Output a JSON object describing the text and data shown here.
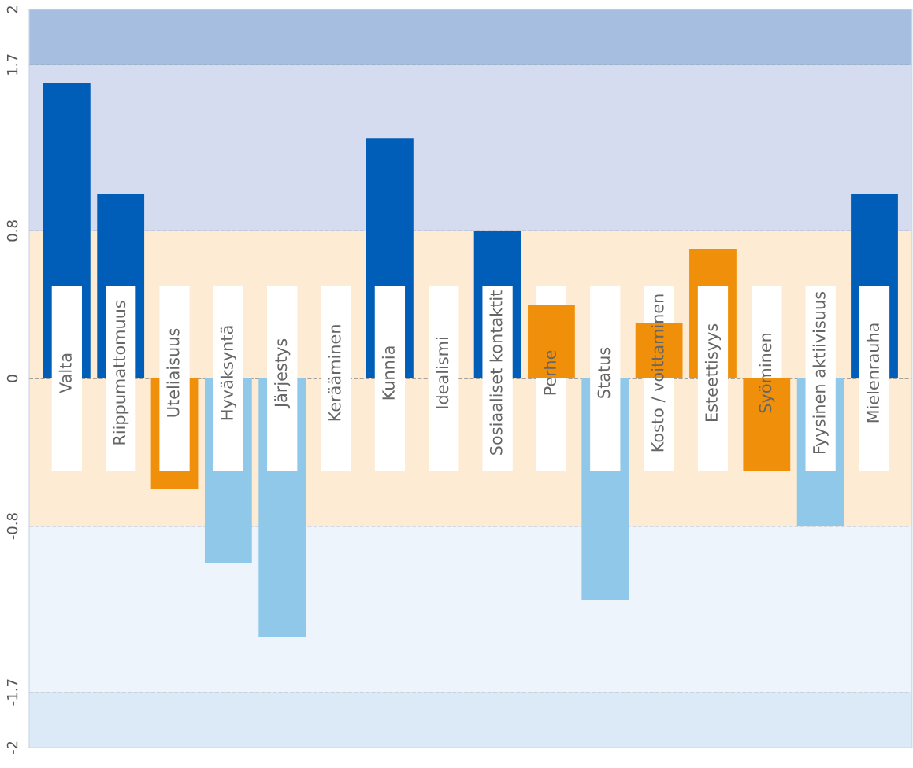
{
  "chart_data": {
    "type": "bar",
    "categories": [
      "Valta",
      "Riippumattomuus",
      "Uteliaisuus",
      "Hyväksyntä",
      "Järjestys",
      "Kerääminen",
      "Kunnia",
      "Idealismi",
      "Sosiaaliset kontaktit",
      "Perhe",
      "Status",
      "Kosto / voittaminen",
      "Esteettisyys",
      "Syöminen",
      "Fyysinen aktiivisuus",
      "Mielenrauha"
    ],
    "values": [
      1.6,
      1.0,
      -0.6,
      -1.0,
      -1.4,
      0,
      1.3,
      0,
      0.8,
      0.4,
      -1.2,
      0.3,
      0.7,
      -0.5,
      -0.8,
      1.0
    ],
    "colors": [
      "#005eb8",
      "#005eb8",
      "#f0900a",
      "#8fc8e8",
      "#8fc8e8",
      "#8fc8e8",
      "#005eb8",
      "#8fc8e8",
      "#005eb8",
      "#f0900a",
      "#8fc8e8",
      "#f0900a",
      "#f0900a",
      "#f0900a",
      "#8fc8e8",
      "#005eb8"
    ],
    "ylim": [
      -2,
      2
    ],
    "yticks": [
      -2,
      -1.7,
      -0.8,
      0,
      0.8,
      1.7,
      2
    ],
    "bands": [
      {
        "axis": "y",
        "from": 1.7,
        "to": 2,
        "color": "#a6bfe0"
      },
      {
        "axis": "y",
        "from": 0.8,
        "to": 1.7,
        "color": "#d5dcef"
      },
      {
        "axis": "y",
        "from": -0.8,
        "to": 0.8,
        "color": "#fdebd3"
      },
      {
        "axis": "y",
        "from": -1.7,
        "to": -0.8,
        "color": "#edf4fb"
      },
      {
        "axis": "y",
        "from": -2,
        "to": -1.7,
        "color": "#dceaf7"
      }
    ],
    "ref_lines": [
      {
        "axis": "y",
        "value": 1.7,
        "color": "#888888",
        "line_style": "dashed"
      },
      {
        "axis": "y",
        "value": 0.8,
        "color": "#888888",
        "line_style": "dashed"
      },
      {
        "axis": "y",
        "value": 0,
        "color": "#888888",
        "line_style": "dashed"
      },
      {
        "axis": "y",
        "value": -0.8,
        "color": "#888888",
        "line_style": "dashed"
      },
      {
        "axis": "y",
        "value": -1.7,
        "color": "#888888",
        "line_style": "dashed"
      }
    ],
    "grid": false,
    "legend": false
  }
}
